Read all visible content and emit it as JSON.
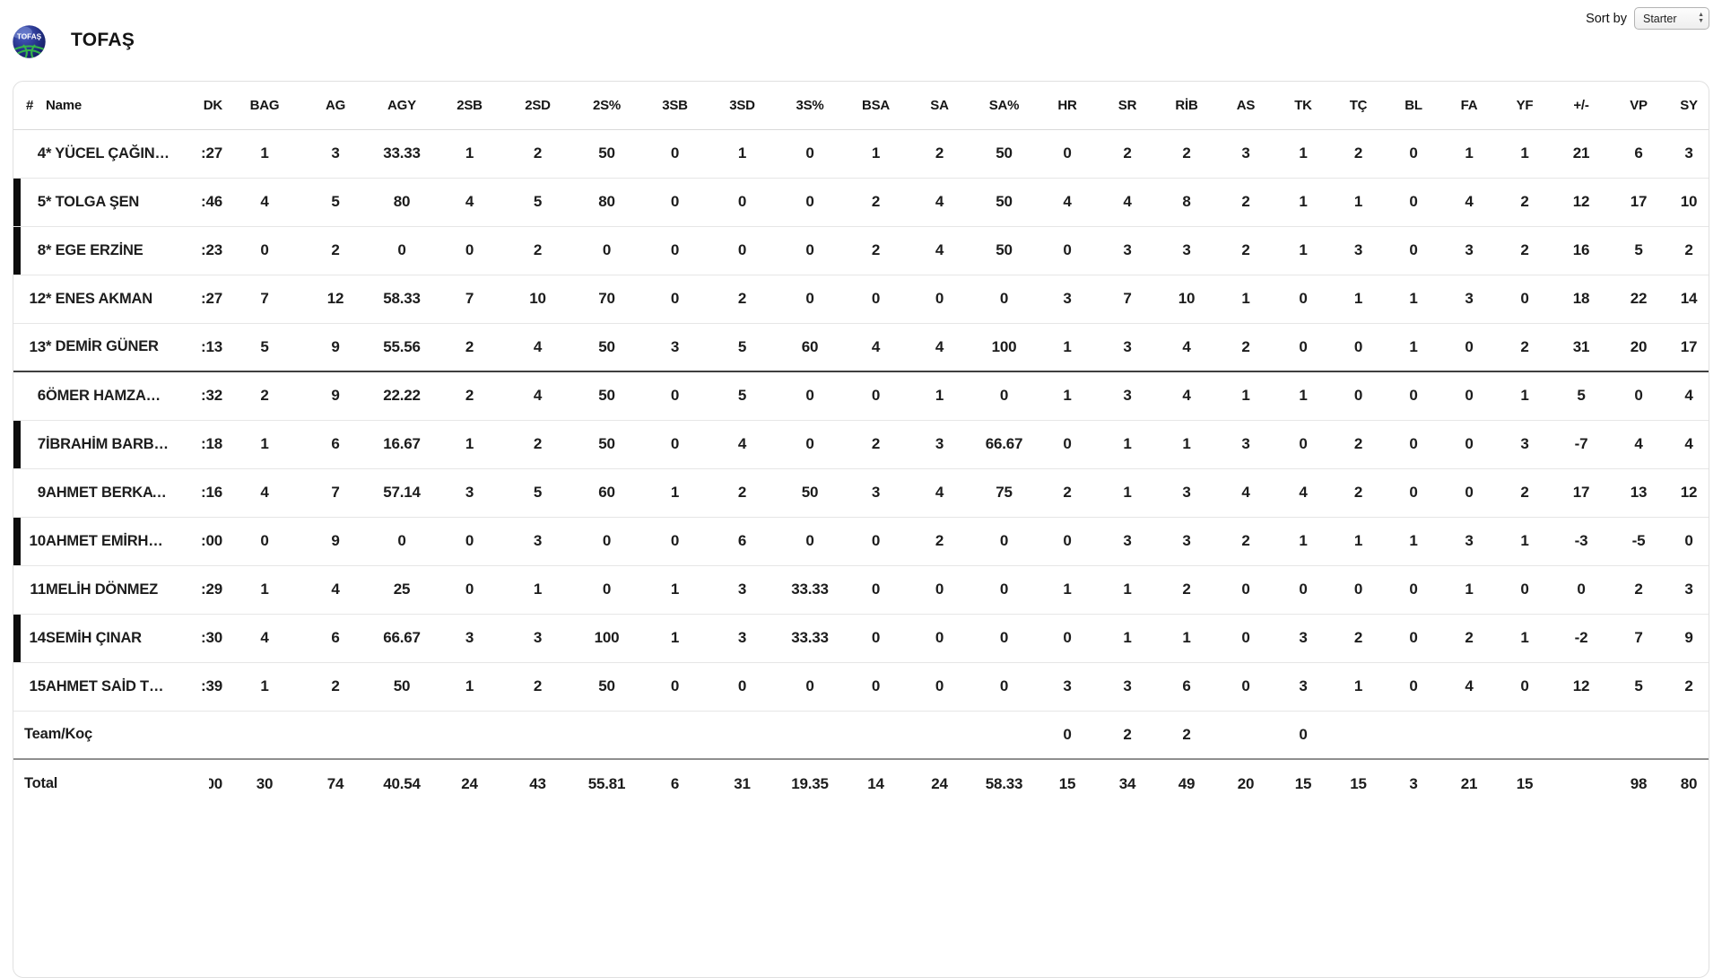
{
  "header": {
    "team_name": "TOFAŞ",
    "logo_label": "TOFAŞ",
    "sort_by_label": "Sort by",
    "sort_by_value": "Starter"
  },
  "colors": {
    "on_court_bar": "#0d0d0d",
    "starter_divider": "#3f3f3f",
    "total_divider": "#8f8f8f"
  },
  "table": {
    "columns": [
      "#",
      "Name",
      "DK",
      "BAG",
      "AG",
      "AGY",
      "2SB",
      "2SD",
      "2S%",
      "3SB",
      "3SD",
      "3S%",
      "BSA",
      "SA",
      "SA%",
      "HR",
      "SR",
      "RİB",
      "AS",
      "TK",
      "TÇ",
      "BL",
      "FA",
      "YF",
      "+/-",
      "VP",
      "SY"
    ],
    "players": [
      {
        "number": "4",
        "starter": true,
        "oncourt": false,
        "name": "YÜCEL ÇAĞIN …",
        "stats": [
          ":27",
          "1",
          "3",
          "33.33",
          "1",
          "2",
          "50",
          "0",
          "1",
          "0",
          "1",
          "2",
          "50",
          "0",
          "2",
          "2",
          "3",
          "1",
          "2",
          "0",
          "1",
          "1",
          "21",
          "6",
          "3"
        ]
      },
      {
        "number": "5",
        "starter": true,
        "oncourt": true,
        "name": "TOLGA ŞEN",
        "stats": [
          ":46",
          "4",
          "5",
          "80",
          "4",
          "5",
          "80",
          "0",
          "0",
          "0",
          "2",
          "4",
          "50",
          "4",
          "4",
          "8",
          "2",
          "1",
          "1",
          "0",
          "4",
          "2",
          "12",
          "17",
          "10"
        ]
      },
      {
        "number": "8",
        "starter": true,
        "oncourt": true,
        "name": "EGE ERZİNE",
        "stats": [
          ":23",
          "0",
          "2",
          "0",
          "0",
          "2",
          "0",
          "0",
          "0",
          "0",
          "2",
          "4",
          "50",
          "0",
          "3",
          "3",
          "2",
          "1",
          "3",
          "0",
          "3",
          "2",
          "16",
          "5",
          "2"
        ]
      },
      {
        "number": "12",
        "starter": true,
        "oncourt": false,
        "name": "ENES AKMAN",
        "stats": [
          ":27",
          "7",
          "12",
          "58.33",
          "7",
          "10",
          "70",
          "0",
          "2",
          "0",
          "0",
          "0",
          "0",
          "3",
          "7",
          "10",
          "1",
          "0",
          "1",
          "1",
          "3",
          "0",
          "18",
          "22",
          "14"
        ]
      },
      {
        "number": "13",
        "starter": true,
        "oncourt": false,
        "name": "DEMİR GÜNER",
        "stats": [
          ":13",
          "5",
          "9",
          "55.56",
          "2",
          "4",
          "50",
          "3",
          "5",
          "60",
          "4",
          "4",
          "100",
          "1",
          "3",
          "4",
          "2",
          "0",
          "0",
          "1",
          "0",
          "2",
          "31",
          "20",
          "17"
        ]
      },
      {
        "number": "6",
        "starter": false,
        "oncourt": false,
        "name": "ÖMER HAMZAOĞ…",
        "stats": [
          ":32",
          "2",
          "9",
          "22.22",
          "2",
          "4",
          "50",
          "0",
          "5",
          "0",
          "0",
          "1",
          "0",
          "1",
          "3",
          "4",
          "1",
          "1",
          "0",
          "0",
          "0",
          "1",
          "5",
          "0",
          "4"
        ]
      },
      {
        "number": "7",
        "starter": false,
        "oncourt": true,
        "name": "İBRAHİM BARBA…",
        "stats": [
          ":18",
          "1",
          "6",
          "16.67",
          "1",
          "2",
          "50",
          "0",
          "4",
          "0",
          "2",
          "3",
          "66.67",
          "0",
          "1",
          "1",
          "3",
          "0",
          "2",
          "0",
          "0",
          "3",
          "-7",
          "4",
          "4"
        ]
      },
      {
        "number": "9",
        "starter": false,
        "oncourt": false,
        "name": "AHMET BERKAY …",
        "stats": [
          ":16",
          "4",
          "7",
          "57.14",
          "3",
          "5",
          "60",
          "1",
          "2",
          "50",
          "3",
          "4",
          "75",
          "2",
          "1",
          "3",
          "4",
          "4",
          "2",
          "0",
          "0",
          "2",
          "17",
          "13",
          "12"
        ]
      },
      {
        "number": "10",
        "starter": false,
        "oncourt": true,
        "name": "AHMET EMİRHA…",
        "stats": [
          ":00",
          "0",
          "9",
          "0",
          "0",
          "3",
          "0",
          "0",
          "6",
          "0",
          "0",
          "2",
          "0",
          "0",
          "3",
          "3",
          "2",
          "1",
          "1",
          "1",
          "3",
          "1",
          "-3",
          "-5",
          "0"
        ]
      },
      {
        "number": "11",
        "starter": false,
        "oncourt": false,
        "name": "MELİH DÖNMEZ",
        "stats": [
          ":29",
          "1",
          "4",
          "25",
          "0",
          "1",
          "0",
          "1",
          "3",
          "33.33",
          "0",
          "0",
          "0",
          "1",
          "1",
          "2",
          "0",
          "0",
          "0",
          "0",
          "1",
          "0",
          "0",
          "2",
          "3"
        ]
      },
      {
        "number": "14",
        "starter": false,
        "oncourt": true,
        "name": "SEMİH ÇINAR",
        "stats": [
          ":30",
          "4",
          "6",
          "66.67",
          "3",
          "3",
          "100",
          "1",
          "3",
          "33.33",
          "0",
          "0",
          "0",
          "0",
          "1",
          "1",
          "0",
          "3",
          "2",
          "0",
          "2",
          "1",
          "-2",
          "7",
          "9"
        ]
      },
      {
        "number": "15",
        "starter": false,
        "oncourt": false,
        "name": "AHMET SAİD TU…",
        "stats": [
          ":39",
          "1",
          "2",
          "50",
          "1",
          "2",
          "50",
          "0",
          "0",
          "0",
          "0",
          "0",
          "0",
          "3",
          "3",
          "6",
          "0",
          "3",
          "1",
          "0",
          "4",
          "0",
          "12",
          "5",
          "2"
        ]
      }
    ],
    "team_row": {
      "label": "Team/Koç",
      "stats": [
        "",
        "",
        "",
        "",
        "",
        "",
        "",
        "",
        "",
        "",
        "",
        "",
        "",
        "0",
        "2",
        "2",
        "",
        "0",
        "",
        "",
        "",
        "",
        "",
        "",
        ""
      ]
    },
    "total_row": {
      "label": "Total",
      "stats": [
        "00",
        "30",
        "74",
        "40.54",
        "24",
        "43",
        "55.81",
        "6",
        "31",
        "19.35",
        "14",
        "24",
        "58.33",
        "15",
        "34",
        "49",
        "20",
        "15",
        "15",
        "3",
        "21",
        "15",
        "",
        "98",
        "80"
      ]
    }
  }
}
